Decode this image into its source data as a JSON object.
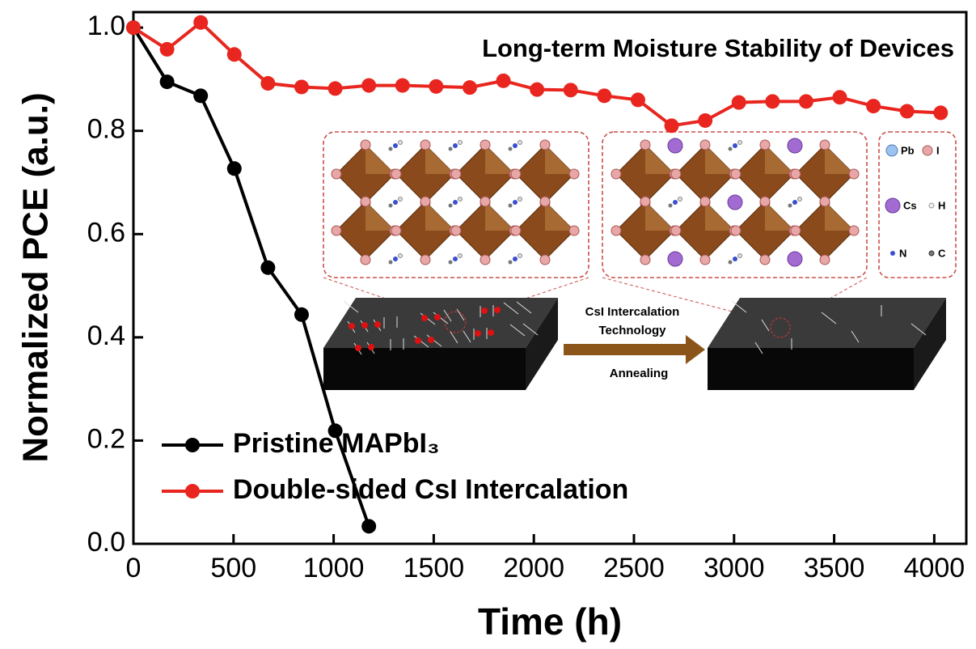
{
  "chart_data": {
    "type": "line",
    "title": "Long-term Moisture Stability of Devices",
    "x_label": "Time (h)",
    "y_label": "Normalized PCE (a.u.)",
    "xlim": [
      0,
      4160
    ],
    "ylim": [
      0,
      1.03
    ],
    "xticks": [
      0,
      500,
      1000,
      1500,
      2000,
      2500,
      3000,
      3500,
      4000
    ],
    "yticks": [
      {
        "value": 0,
        "label": "0.0"
      },
      0.2,
      0.4,
      0.6,
      0.8,
      {
        "value": 1,
        "label": "1.0"
      }
    ],
    "series": [
      {
        "name": "Pristine MAPbI₃",
        "color": "#000000",
        "x": [
          0,
          168,
          336,
          504,
          672,
          840,
          1008,
          1176
        ],
        "values": [
          1.0,
          0.895,
          0.868,
          0.727,
          0.535,
          0.444,
          0.219,
          0.034
        ]
      },
      {
        "name": "Double-sided CsI Intercalation",
        "color": "#e8261f",
        "x": [
          0,
          168,
          336,
          504,
          672,
          840,
          1008,
          1176,
          1344,
          1512,
          1680,
          1848,
          2016,
          2184,
          2352,
          2520,
          2688,
          2856,
          3024,
          3192,
          3360,
          3528,
          3696,
          3864,
          4032
        ],
        "values": [
          1.0,
          0.958,
          1.01,
          0.948,
          0.892,
          0.885,
          0.882,
          0.888,
          0.888,
          0.886,
          0.884,
          0.897,
          0.88,
          0.879,
          0.868,
          0.86,
          0.81,
          0.82,
          0.855,
          0.857,
          0.857,
          0.865,
          0.848,
          0.838,
          0.835
        ]
      }
    ],
    "annotations": [
      "CsI Intercalation",
      "Technology",
      "Annealing"
    ],
    "atom_legend": [
      "Pb",
      "I",
      "Cs",
      "H",
      "N",
      "C"
    ]
  }
}
